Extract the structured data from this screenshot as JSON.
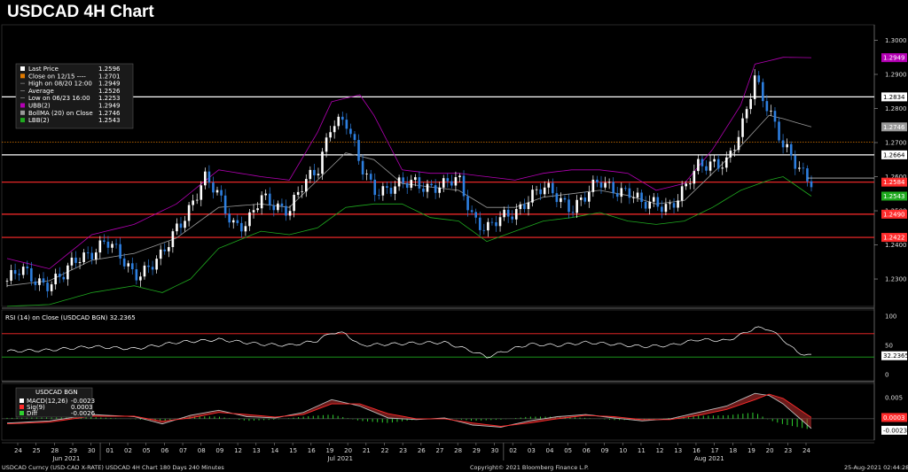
{
  "title": "USDCAD 4H Chart",
  "colors": {
    "up": "#ffffff",
    "down": "#2d7fe0",
    "ubb": "#b400b4",
    "lbb": "#1faa1f",
    "bollma": "#9a9a9a",
    "hline_white": "#ffffff",
    "hline_red": "#ff2b2b",
    "close_line": "#e07a00",
    "rsi_line": "#ffffff",
    "macd": "#bbbbbb",
    "sig": "#ff2b2b",
    "diff": "#2fd12f"
  },
  "legend": {
    "items": [
      {
        "label": "Last Price",
        "value": "1.2596",
        "swatch": "#ffffff"
      },
      {
        "label": "Close on 12/15 ----",
        "value": "1.2701",
        "swatch": "#e07a00"
      },
      {
        "label": "High on 08/20 12:00",
        "value": "1.2949",
        "swatch": "none"
      },
      {
        "label": "Average",
        "value": "1.2526",
        "swatch": "none"
      },
      {
        "label": "Low on 06/23 16:00",
        "value": "1.2253",
        "swatch": "none"
      },
      {
        "label": "UBB(2)",
        "value": "1.2949",
        "swatch": "#b400b4"
      },
      {
        "label": "BollMA (20)  on Close",
        "value": "1.2746",
        "swatch": "#9a9a9a"
      },
      {
        "label": "LBB(2)",
        "value": "1.2543",
        "swatch": "#1faa1f"
      }
    ]
  },
  "chart_data": [
    {
      "type": "candlestick",
      "panel": "price",
      "title": "USDCAD 4H Chart",
      "ylim": [
        1.223,
        1.3035
      ],
      "y_ticks": [
        "1.3000",
        "1.2900",
        "1.2800",
        "1.2700",
        "1.2600",
        "1.2500",
        "1.2400",
        "1.2300"
      ],
      "horizontal_lines": [
        {
          "value": 1.2834,
          "label": "1.2834",
          "color": "white"
        },
        {
          "value": 1.2664,
          "label": "1.2664",
          "color": "white"
        },
        {
          "value": 1.2584,
          "label": "1.2584",
          "color": "red"
        },
        {
          "value": 1.249,
          "label": "1.2490",
          "color": "red"
        },
        {
          "value": 1.2422,
          "label": "1.2422",
          "color": "red"
        },
        {
          "value": 1.2701,
          "label": "",
          "color": "orange dotted"
        }
      ],
      "price_tags": [
        {
          "value": 1.2949,
          "label": "1.2949",
          "color": "#b400b4"
        },
        {
          "value": 1.2746,
          "label": "1.2746",
          "color": "#9a9a9a"
        },
        {
          "value": 1.2543,
          "label": "1.2543",
          "color": "#1faa1f"
        }
      ],
      "close_series": [
        [
          0,
          1.2295
        ],
        [
          1,
          1.232
        ],
        [
          2,
          1.23
        ],
        [
          3,
          1.229
        ],
        [
          4,
          1.2305
        ],
        [
          5,
          1.236
        ],
        [
          6,
          1.2385
        ],
        [
          7,
          1.241
        ],
        [
          8,
          1.236
        ],
        [
          9,
          1.232
        ],
        [
          10,
          1.2335
        ],
        [
          11,
          1.236
        ],
        [
          12,
          1.245
        ],
        [
          13,
          1.252
        ],
        [
          14,
          1.259
        ],
        [
          15,
          1.254
        ],
        [
          16,
          1.247
        ],
        [
          17,
          1.246
        ],
        [
          18,
          1.253
        ],
        [
          19,
          1.252
        ],
        [
          20,
          1.251
        ],
        [
          21,
          1.257
        ],
        [
          22,
          1.2615
        ],
        [
          23,
          1.277
        ],
        [
          24,
          1.276
        ],
        [
          25,
          1.263
        ],
        [
          26,
          1.257
        ],
        [
          27,
          1.2565
        ],
        [
          28,
          1.257
        ],
        [
          29,
          1.2585
        ],
        [
          30,
          1.2575
        ],
        [
          31,
          1.257
        ],
        [
          32,
          1.259
        ],
        [
          33,
          1.249
        ],
        [
          34,
          1.2445
        ],
        [
          35,
          1.247
        ],
        [
          36,
          1.25
        ],
        [
          37,
          1.2545
        ],
        [
          38,
          1.256
        ],
        [
          39,
          1.254
        ],
        [
          40,
          1.2515
        ],
        [
          41,
          1.254
        ],
        [
          42,
          1.258
        ],
        [
          43,
          1.257
        ],
        [
          44,
          1.256
        ],
        [
          45,
          1.251
        ],
        [
          46,
          1.2525
        ],
        [
          47,
          1.252
        ],
        [
          48,
          1.2555
        ],
        [
          49,
          1.263
        ],
        [
          50,
          1.265
        ],
        [
          51,
          1.264
        ],
        [
          52,
          1.272
        ],
        [
          53,
          1.29
        ],
        [
          54,
          1.28
        ],
        [
          55,
          1.268
        ],
        [
          56,
          1.263
        ],
        [
          57,
          1.2596
        ]
      ],
      "ubb_series": [
        [
          0,
          1.236
        ],
        [
          3,
          1.233
        ],
        [
          6,
          1.243
        ],
        [
          9,
          1.246
        ],
        [
          12,
          1.252
        ],
        [
          15,
          1.262
        ],
        [
          18,
          1.26
        ],
        [
          20,
          1.259
        ],
        [
          22,
          1.273
        ],
        [
          23,
          1.282
        ],
        [
          25,
          1.284
        ],
        [
          26,
          1.278
        ],
        [
          28,
          1.262
        ],
        [
          30,
          1.261
        ],
        [
          32,
          1.261
        ],
        [
          34,
          1.26
        ],
        [
          36,
          1.259
        ],
        [
          38,
          1.261
        ],
        [
          40,
          1.262
        ],
        [
          42,
          1.262
        ],
        [
          44,
          1.261
        ],
        [
          46,
          1.256
        ],
        [
          48,
          1.258
        ],
        [
          50,
          1.268
        ],
        [
          52,
          1.281
        ],
        [
          53,
          1.293
        ],
        [
          55,
          1.295
        ],
        [
          57,
          1.2949
        ]
      ],
      "bollma_series": [
        [
          0,
          1.228
        ],
        [
          3,
          1.2295
        ],
        [
          6,
          1.2355
        ],
        [
          9,
          1.2375
        ],
        [
          12,
          1.242
        ],
        [
          15,
          1.251
        ],
        [
          18,
          1.252
        ],
        [
          20,
          1.251
        ],
        [
          22,
          1.259
        ],
        [
          24,
          1.267
        ],
        [
          26,
          1.265
        ],
        [
          28,
          1.258
        ],
        [
          30,
          1.257
        ],
        [
          32,
          1.256
        ],
        [
          34,
          1.251
        ],
        [
          36,
          1.251
        ],
        [
          38,
          1.254
        ],
        [
          40,
          1.255
        ],
        [
          42,
          1.256
        ],
        [
          44,
          1.2545
        ],
        [
          46,
          1.252
        ],
        [
          48,
          1.253
        ],
        [
          50,
          1.261
        ],
        [
          52,
          1.269
        ],
        [
          54,
          1.278
        ],
        [
          55,
          1.277
        ],
        [
          57,
          1.2746
        ]
      ],
      "lbb_series": [
        [
          0,
          1.222
        ],
        [
          3,
          1.2225
        ],
        [
          6,
          1.226
        ],
        [
          9,
          1.228
        ],
        [
          11,
          1.226
        ],
        [
          13,
          1.23
        ],
        [
          15,
          1.239
        ],
        [
          18,
          1.244
        ],
        [
          20,
          1.243
        ],
        [
          22,
          1.245
        ],
        [
          24,
          1.251
        ],
        [
          26,
          1.252
        ],
        [
          28,
          1.252
        ],
        [
          30,
          1.248
        ],
        [
          32,
          1.247
        ],
        [
          34,
          1.241
        ],
        [
          36,
          1.244
        ],
        [
          38,
          1.247
        ],
        [
          40,
          1.248
        ],
        [
          42,
          1.2495
        ],
        [
          44,
          1.247
        ],
        [
          46,
          1.246
        ],
        [
          48,
          1.247
        ],
        [
          50,
          1.251
        ],
        [
          52,
          1.256
        ],
        [
          54,
          1.259
        ],
        [
          55,
          1.26
        ],
        [
          57,
          1.2543
        ]
      ]
    },
    {
      "type": "line",
      "panel": "rsi",
      "title": "RSI (14)  on Close (USDCAD BGN) 32.2365",
      "ylim": [
        0,
        100
      ],
      "y_ticks": [
        "100",
        "50",
        "0"
      ],
      "levels": [
        {
          "value": 70,
          "color": "red"
        },
        {
          "value": 30,
          "color": "green"
        }
      ],
      "last_label": "32.2365",
      "series": [
        [
          0,
          40
        ],
        [
          3,
          42
        ],
        [
          6,
          48
        ],
        [
          9,
          44
        ],
        [
          12,
          55
        ],
        [
          15,
          60
        ],
        [
          18,
          52
        ],
        [
          20,
          50
        ],
        [
          22,
          58
        ],
        [
          23,
          72
        ],
        [
          24,
          70
        ],
        [
          25,
          50
        ],
        [
          27,
          52
        ],
        [
          29,
          54
        ],
        [
          31,
          55
        ],
        [
          33,
          40
        ],
        [
          34,
          30
        ],
        [
          35,
          38
        ],
        [
          37,
          52
        ],
        [
          39,
          50
        ],
        [
          41,
          55
        ],
        [
          43,
          52
        ],
        [
          45,
          48
        ],
        [
          47,
          50
        ],
        [
          49,
          60
        ],
        [
          51,
          58
        ],
        [
          52,
          68
        ],
        [
          53,
          80
        ],
        [
          54,
          78
        ],
        [
          55,
          60
        ],
        [
          56,
          38
        ],
        [
          57,
          32.2365
        ]
      ]
    },
    {
      "type": "line",
      "panel": "macd",
      "legend_title": "USDCAD BGN",
      "legend": [
        {
          "label": "MACD(12,26)",
          "value": "-0.0023",
          "color": "#ffffff"
        },
        {
          "label": "Sig(9)",
          "value": "0.0003",
          "color": "#ff2b2b"
        },
        {
          "label": "Diff",
          "value": "-0.0026",
          "color": "#2fd12f"
        }
      ],
      "y_ticks": [
        "0.005",
        "0.0003",
        "-0.0023"
      ],
      "ylim": [
        -0.004,
        0.0075
      ],
      "macd_series": [
        [
          0,
          -0.001
        ],
        [
          3,
          -0.0005
        ],
        [
          6,
          0.001
        ],
        [
          9,
          0.0005
        ],
        [
          11,
          -0.0012
        ],
        [
          13,
          0.0008
        ],
        [
          15,
          0.002
        ],
        [
          17,
          0.0005
        ],
        [
          19,
          0.0002
        ],
        [
          21,
          0.0015
        ],
        [
          23,
          0.0045
        ],
        [
          25,
          0.003
        ],
        [
          27,
          0.0002
        ],
        [
          29,
          -0.0002
        ],
        [
          31,
          0.0002
        ],
        [
          33,
          -0.0015
        ],
        [
          35,
          -0.002
        ],
        [
          37,
          -0.0005
        ],
        [
          39,
          0.0005
        ],
        [
          41,
          0.001
        ],
        [
          43,
          0.0002
        ],
        [
          45,
          -0.0005
        ],
        [
          47,
          0.0
        ],
        [
          49,
          0.0015
        ],
        [
          51,
          0.003
        ],
        [
          53,
          0.006
        ],
        [
          54,
          0.0055
        ],
        [
          55,
          0.0035
        ],
        [
          57,
          -0.0023
        ]
      ],
      "sig_series": [
        [
          0,
          -0.0012
        ],
        [
          3,
          -0.0008
        ],
        [
          6,
          0.0006
        ],
        [
          9,
          0.0006
        ],
        [
          11,
          -0.0006
        ],
        [
          13,
          0.0002
        ],
        [
          15,
          0.0015
        ],
        [
          17,
          0.001
        ],
        [
          19,
          0.0004
        ],
        [
          21,
          0.001
        ],
        [
          23,
          0.0035
        ],
        [
          25,
          0.0035
        ],
        [
          27,
          0.0012
        ],
        [
          29,
          0.0
        ],
        [
          31,
          0.0
        ],
        [
          33,
          -0.001
        ],
        [
          35,
          -0.0018
        ],
        [
          37,
          -0.001
        ],
        [
          39,
          0.0
        ],
        [
          41,
          0.0008
        ],
        [
          43,
          0.0005
        ],
        [
          45,
          -0.0002
        ],
        [
          47,
          -0.0002
        ],
        [
          49,
          0.0008
        ],
        [
          51,
          0.0022
        ],
        [
          53,
          0.0045
        ],
        [
          54,
          0.0058
        ],
        [
          55,
          0.0048
        ],
        [
          57,
          0.0003
        ]
      ]
    }
  ],
  "x_axis": {
    "ticks": [
      "24",
      "25",
      "28",
      "29",
      "30",
      "01",
      "02",
      "05",
      "06",
      "07",
      "08",
      "09",
      "12",
      "13",
      "14",
      "15",
      "16",
      "19",
      "20",
      "21",
      "22",
      "23",
      "26",
      "27",
      "28",
      "29",
      "30",
      "02",
      "03",
      "04",
      "05",
      "06",
      "09",
      "10",
      "11",
      "12",
      "13",
      "16",
      "17",
      "18",
      "19",
      "20",
      "23",
      "24"
    ],
    "months": [
      {
        "label": "Jun 2021",
        "at": 2
      },
      {
        "label": "Jul 2021",
        "at": 17
      },
      {
        "label": "Aug 2021",
        "at": 37
      }
    ]
  },
  "footer": {
    "left": "USDCAD Curncy (USD-CAD X-RATE) USDCAD 4H Chart 180 Days 240 Minutes",
    "center": "Copyright© 2021 Bloomberg Finance L.P.",
    "right": "25-Aug-2021 02:44:28"
  }
}
